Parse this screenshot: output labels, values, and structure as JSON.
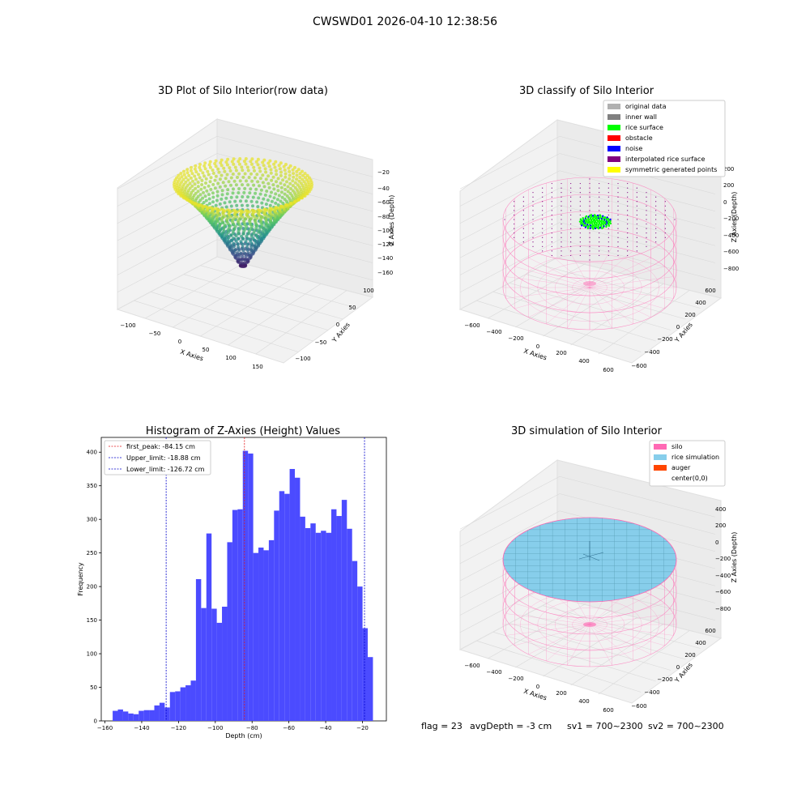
{
  "figure": {
    "title": "CWSWD01 2026-04-10 12:38:56"
  },
  "status_bar": {
    "flag": "flag = 23",
    "avg_depth": "avgDepth = -3 cm",
    "sv1": "sv1 = 700~2300",
    "sv2": "sv2 = 700~2300"
  },
  "colors": {
    "hist_bar": "#4b4bff",
    "peak_line": "#e31a1c",
    "limit_line": "#0000cc",
    "silo": "#ff69b4",
    "rice_simulation": "#87ceeb",
    "auger": "#ff4500",
    "rice_surface": "#00ff00",
    "noise": "#0000ff",
    "obstacle": "#ff0000",
    "inner_wall": "#808080",
    "original_data": "#b0b0b0",
    "interpolated_rice_surface": "#800080",
    "symmetric_generated_points": "#ffff00"
  },
  "chart_data": [
    {
      "id": "raw3d",
      "type": "scatter",
      "title": "3D Plot of Silo Interior(row data)",
      "xlabel": "X Axies",
      "ylabel": "Y Axies",
      "zlabel": "Z Axies (Depth)",
      "xticks": [
        "−100",
        "−50",
        "0",
        "50",
        "100",
        "150"
      ],
      "yticks": [
        "−100",
        "−50",
        "0",
        "50",
        "100"
      ],
      "zticks": [
        "−20",
        "−40",
        "−60",
        "−80",
        "−100",
        "−120",
        "−140",
        "−160"
      ],
      "colormap": "viridis",
      "zlim": [
        -160,
        -15
      ]
    },
    {
      "id": "classify3d",
      "type": "scatter",
      "title": "3D classify of Silo Interior",
      "xlabel": "X Axies",
      "ylabel": "Y Axies",
      "zlabel": "Z Axies (Depth)",
      "xticks": [
        "−600",
        "−400",
        "−200",
        "0",
        "200",
        "400",
        "600"
      ],
      "yticks": [
        "−600",
        "−400",
        "−200",
        "0",
        "200",
        "400",
        "600"
      ],
      "zticks": [
        "200",
        "0",
        "−200",
        "−400",
        "−600",
        "−800"
      ],
      "legend": [
        "original data",
        "inner wall",
        "rice surface",
        "obstacle",
        "noise",
        "interpolated rice surface",
        "symmetric generated points"
      ],
      "legend_position": "top-right"
    },
    {
      "id": "histogram",
      "type": "bar",
      "title": "Histogram of Z-Axies (Height) Values",
      "xlabel": "Depth (cm)",
      "ylabel": "Frequency",
      "xlim": [
        -162,
        -7
      ],
      "ylim": [
        0,
        422
      ],
      "xticks": [
        -160,
        -140,
        -120,
        -100,
        -80,
        -60,
        -40,
        -20
      ],
      "xtick_labels": [
        "−160",
        "−140",
        "−120",
        "−100",
        "−80",
        "−60",
        "−40",
        "−20"
      ],
      "yticks": [
        0,
        50,
        100,
        150,
        200,
        250,
        300,
        350,
        400
      ],
      "yticks_labels": [
        "0",
        "50",
        "100",
        "150",
        "200",
        "250",
        "300",
        "350",
        "400"
      ],
      "bin_start": -155.8,
      "bin_width": 2.83,
      "values": [
        15,
        17,
        14,
        11,
        10,
        15,
        16,
        16,
        23,
        27,
        20,
        43,
        44,
        50,
        53,
        60,
        211,
        168,
        279,
        167,
        146,
        170,
        266,
        314,
        315,
        402,
        398,
        250,
        258,
        254,
        269,
        313,
        342,
        338,
        375,
        362,
        304,
        287,
        294,
        280,
        283,
        280,
        315,
        305,
        329,
        286,
        238,
        200,
        138,
        95
      ],
      "lines": [
        {
          "label": "first_peak: -84.15 cm",
          "x": -84.15,
          "style": "peak"
        },
        {
          "label": "Upper_limit: -18.88 cm",
          "x": -18.88,
          "style": "limit"
        },
        {
          "label": "Lower_limit: -126.72 cm",
          "x": -126.72,
          "style": "limit"
        }
      ],
      "legend_position": "top-left"
    },
    {
      "id": "sim3d",
      "type": "area",
      "title": "3D simulation of Silo Interior",
      "xlabel": "X Axies",
      "ylabel": "Y Axies",
      "zlabel": "Z Axies (Depth)",
      "xticks": [
        "−600",
        "−400",
        "−200",
        "0",
        "200",
        "400",
        "600"
      ],
      "yticks": [
        "−600",
        "−400",
        "−200",
        "0",
        "200",
        "400",
        "600"
      ],
      "zticks": [
        "400",
        "200",
        "0",
        "−200",
        "−400",
        "−600",
        "−800"
      ],
      "legend": [
        "silo",
        "rice simulation",
        "auger",
        "center(0,0)"
      ],
      "legend_position": "top-right"
    }
  ]
}
